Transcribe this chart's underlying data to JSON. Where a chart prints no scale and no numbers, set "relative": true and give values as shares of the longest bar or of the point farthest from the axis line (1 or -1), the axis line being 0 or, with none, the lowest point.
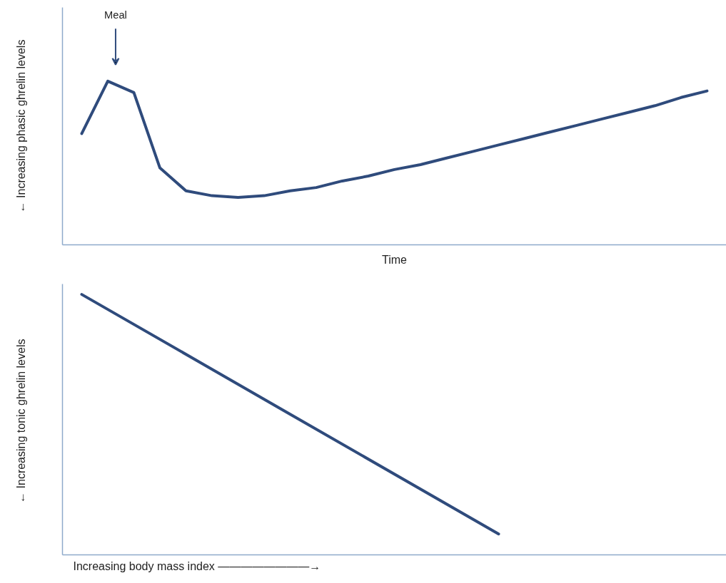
{
  "chart_data": [
    {
      "type": "line",
      "relative": true,
      "tick_labels": false,
      "ylabel": "← Increasing phasic ghrelin levels",
      "xlabel": "Time",
      "annotations": [
        "Meal"
      ],
      "categories": [
        null,
        null,
        null,
        null,
        null,
        null,
        null,
        null,
        null,
        null,
        null,
        null,
        null,
        null,
        null,
        null,
        null,
        null,
        null,
        null,
        null,
        null,
        null,
        null,
        null
      ],
      "series": [
        {
          "color": "#2f4b7c",
          "values": [
            0.68,
            1.0,
            0.93,
            0.47,
            0.33,
            0.3,
            0.29,
            0.3,
            0.33,
            0.35,
            0.39,
            0.42,
            0.46,
            0.49,
            0.53,
            0.57,
            0.61,
            0.65,
            0.69,
            0.73,
            0.77,
            0.81,
            0.85,
            0.9,
            0.94
          ]
        }
      ]
    },
    {
      "type": "line",
      "relative": true,
      "tick_labels": false,
      "ylabel": "←  Increasing tonic ghrelin levels",
      "xlabel": "Increasing body mass index  ————————→",
      "categories": [
        null,
        null,
        null,
        null
      ],
      "series": [
        {
          "color": "#2f4b7c",
          "values": [
            1.0,
            0.54,
            0.08,
            null
          ]
        }
      ]
    }
  ]
}
